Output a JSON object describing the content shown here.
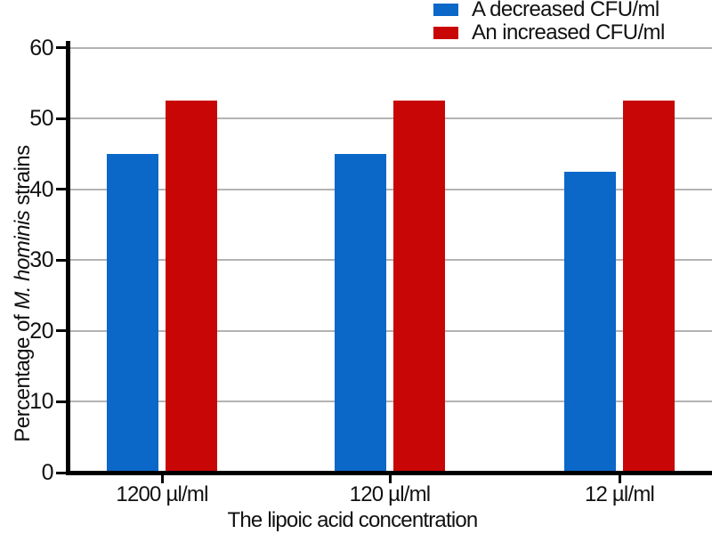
{
  "chart_data": {
    "type": "bar",
    "title": "",
    "xlabel": "The lipoic acid concentration",
    "ylabel": {
      "prefix": "Percentage of ",
      "italic": "M. hominis",
      "suffix": " strains"
    },
    "categories": [
      "1200 µl/ml",
      "120 µl/ml",
      "12 µl/ml"
    ],
    "series": [
      {
        "name": "A decreased CFU/ml",
        "color": "#0b67c8",
        "values": [
          45,
          45,
          42.5
        ]
      },
      {
        "name": "An increased CFU/ml",
        "color": "#c90606",
        "values": [
          52.5,
          52.5,
          52.5
        ]
      }
    ],
    "ylim": [
      0,
      60
    ],
    "yticks": [
      0,
      10,
      20,
      30,
      40,
      50,
      60
    ],
    "grid": true,
    "legend_position": "top-right",
    "colors": {
      "axis": "#000000",
      "gridline": "#b3b3b3",
      "text": "#111111",
      "background": "#ffffff"
    }
  }
}
